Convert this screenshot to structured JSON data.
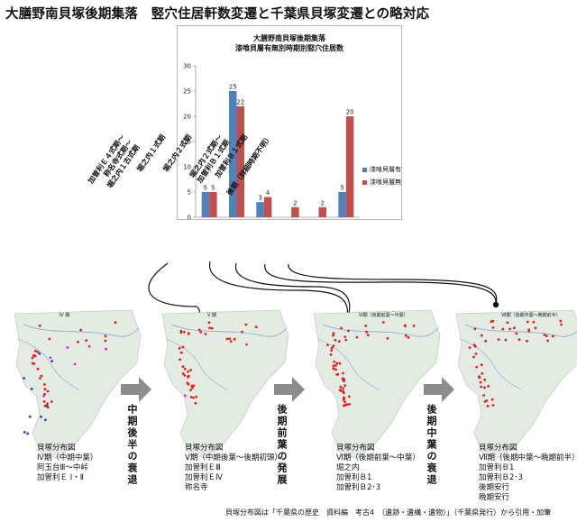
{
  "title": "大膳野南貝塚後期集落　竪穴住居軒数変遷と千葉県貝塚変遷との略対応",
  "chart_data": {
    "type": "bar",
    "title_lines": [
      "大膳野南貝塚後期集落",
      "漆喰貝層有無別時期別竪穴住居数"
    ],
    "categories": [
      "加曽利E4式期〜称名寺式期〜堀之内1古式期",
      "堀之内1式期",
      "堀之内2式期",
      "堀之内2式期〜加曽利B1式期",
      "加曽利B1式期",
      "後期(詳細時期不明)"
    ],
    "category_label_lines": [
      [
        "加曽利Ｅ４式期〜",
        "称名寺式期〜",
        "堀之内１古式期"
      ],
      [
        "堀之内１式期"
      ],
      [
        "堀之内２式期"
      ],
      [
        "堀之内２式期〜",
        "加曽利Ｂ１式期"
      ],
      [
        "加曽利Ｂ１式期"
      ],
      [
        "後期（詳細時期不明）"
      ]
    ],
    "series": [
      {
        "name": "漆喰貝層有",
        "color": "#4f81bd",
        "values": [
          5,
          25,
          3,
          0,
          0,
          5
        ],
        "labels": [
          "5",
          "25",
          "3",
          "",
          "",
          "5"
        ]
      },
      {
        "name": "漆喰貝層無",
        "color": "#c0504d",
        "values": [
          5,
          22,
          4,
          2,
          2,
          20
        ],
        "labels": [
          "5",
          "22",
          "4",
          "2",
          "2",
          "20"
        ]
      }
    ],
    "ylim": [
      0,
      30
    ],
    "yticks": [
      0,
      5,
      10,
      15,
      20,
      25,
      30
    ],
    "legend_position": "right"
  },
  "maps": [
    {
      "caption_lines": [
        "貝塚分布図",
        "Ⅳ期（中期中葉）",
        "阿玉台Ⅲ〜中峠",
        "加曽利Ｅ Ⅰ・Ⅱ"
      ],
      "header": "Ⅳ 期"
    },
    {
      "caption_lines": [
        "貝塚分布図",
        "Ⅴ期（中期後葉〜後期初頭）",
        "加曽利ＥⅢ",
        "加曽利ＥⅣ",
        "称名寺"
      ],
      "header": "Ⅴ 期"
    },
    {
      "caption_lines": [
        "貝塚分布図",
        "Ⅵ期（後期前葉〜中葉）",
        "堀之内",
        "加曽利Ｂ1",
        "加曽利Ｂ2･3"
      ],
      "header": "Ⅵ期（後期前葉〜中葉）"
    },
    {
      "caption_lines": [
        "貝塚分布図",
        "Ⅶ期（後期中葉〜晩期前半）",
        "加曽利Ｂ1",
        "加曽利Ｂ2･3",
        "後期安行",
        "晩期安行"
      ],
      "header": "Ⅶ期（後期中葉〜晩期前半）"
    }
  ],
  "transitions": [
    "中期後半の衰退",
    "後期前葉の発展",
    "後期中葉の衰退"
  ],
  "source_note": "貝塚分布図は「千葉県の歴史　資料編　考古4　（遺跡・遺構・遺物）」（千葉県発行）から引用・加筆",
  "colors": {
    "arrow": "#8c8c8c",
    "dot_red": "#e02020",
    "dot_blue": "#2a3fbf",
    "dot_magenta": "#e020e0",
    "land": "#e4ebe2",
    "sea": "#f4f7fa",
    "river": "#7fa9cf"
  }
}
